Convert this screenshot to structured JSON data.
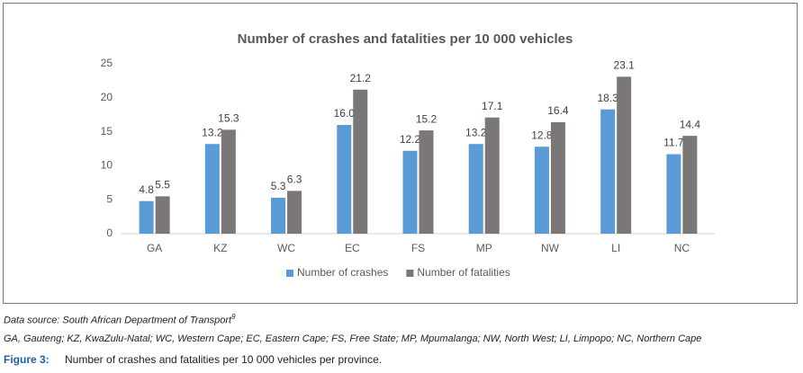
{
  "chart_data": {
    "type": "bar",
    "title": "Number of crashes and fatalities per 10 000  vehicles",
    "categories": [
      "GA",
      "KZ",
      "WC",
      "EC",
      "FS",
      "MP",
      "NW",
      "LI",
      "NC"
    ],
    "series": [
      {
        "name": "Number of crashes",
        "color": "#5b9bd5",
        "values": [
          4.8,
          13.2,
          5.3,
          16.0,
          12.2,
          13.2,
          12.8,
          18.3,
          11.7
        ],
        "value_labels": [
          "4.8",
          "13.2",
          "5.3",
          "16.0",
          "12.2",
          "13.2",
          "12.8",
          "18.3",
          "11.7"
        ]
      },
      {
        "name": "Number of fatalities",
        "color": "#7b7777",
        "values": [
          5.5,
          15.3,
          6.3,
          21.2,
          15.2,
          17.1,
          16.4,
          23.1,
          14.4
        ],
        "value_labels": [
          "5.5",
          "15.3",
          "6.3",
          "21.2",
          "15.2",
          "17.1",
          "16.4",
          "23.1",
          "14.4"
        ]
      }
    ],
    "ylim": [
      0,
      25
    ],
    "yticks": [
      0,
      5,
      10,
      15,
      20,
      25
    ],
    "grid": false,
    "legend": "bottom"
  },
  "notes": {
    "source": "Data source: South African Department of Transport",
    "source_ref": "9",
    "abbreviations": "GA, Gauteng; KZ, KwaZulu-Natal; WC, Western Cape; EC, Eastern Cape; FS, Free State; MP, Mpumalanga; NW, North West; LI, Limpopo; NC, Northern Cape",
    "figure_label": "Figure 3:",
    "caption": "Number of crashes and fatalities per 10 000 vehicles per province."
  }
}
